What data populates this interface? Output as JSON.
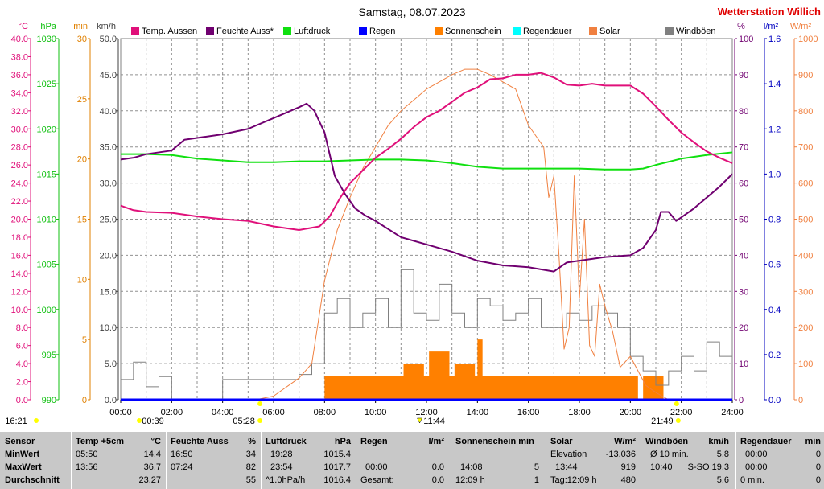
{
  "title": "Samstag, 08.07.2023",
  "station": "Wetterstation Willich",
  "colors": {
    "temp": "#e0107a",
    "hum": "#700070",
    "press": "#10e010",
    "rain": "#0000ff",
    "sun": "#ff8000",
    "raindur": "#00ffff",
    "solar": "#f08040",
    "gust": "#808080",
    "title_red": "#e00000",
    "grid": "#808080",
    "marker": "#ffff00"
  },
  "legend": [
    {
      "label": "Temp. Aussen",
      "color": "#e0107a"
    },
    {
      "label": "Feuchte Auss*",
      "color": "#700070"
    },
    {
      "label": "Luftdruck",
      "color": "#10e010"
    },
    {
      "label": "Regen",
      "color": "#0000ff"
    },
    {
      "label": "Sonnenschein",
      "color": "#ff8000"
    },
    {
      "label": "Regendauer",
      "color": "#00ffff"
    },
    {
      "label": "Solar",
      "color": "#f08040"
    },
    {
      "label": "Windböen",
      "color": "#808080"
    }
  ],
  "axes": {
    "temp": {
      "unit": "°C",
      "ticks": [
        "40.0",
        "38.0",
        "36.0",
        "34.0",
        "32.0",
        "30.0",
        "28.0",
        "26.0",
        "24.0",
        "22.0",
        "20.0",
        "18.0",
        "16.0",
        "14.0",
        "12.0",
        "10.0",
        "8.0",
        "6.0",
        "4.0",
        "2.0",
        "0.0"
      ],
      "color": "#e0107a"
    },
    "press": {
      "unit": "hPa",
      "ticks": [
        "1030",
        "1025",
        "1020",
        "1015",
        "1010",
        "1005",
        "1000",
        "995",
        "990"
      ],
      "color": "#10c010"
    },
    "min": {
      "unit": "min",
      "ticks": [
        "30",
        "25",
        "20",
        "15",
        "10",
        "5",
        "0"
      ],
      "color": "#e08000"
    },
    "wind": {
      "unit": "km/h",
      "ticks": [
        "50.0",
        "45.0",
        "40.0",
        "35.0",
        "30.0",
        "25.0",
        "20.0",
        "15.0",
        "10.0",
        "5.0",
        "0.0"
      ],
      "color": "#404040"
    },
    "hum": {
      "unit": "%",
      "ticks": [
        "100",
        "90",
        "80",
        "70",
        "60",
        "50",
        "40",
        "30",
        "20",
        "10",
        "0"
      ],
      "color": "#700070"
    },
    "rainrate": {
      "unit": "l/m²",
      "ticks": [
        "1.6",
        "1.4",
        "1.2",
        "1.0",
        "0.8",
        "0.6",
        "0.4",
        "0.2",
        "0.0"
      ],
      "color": "#0000c0"
    },
    "solar": {
      "unit": "W/m²",
      "ticks": [
        "1000",
        "900",
        "800",
        "700",
        "600",
        "500",
        "400",
        "300",
        "200",
        "100",
        "0"
      ],
      "color": "#f08040"
    },
    "x": {
      "ticks": [
        "00:00",
        "02:00",
        "04:00",
        "06:00",
        "08:00",
        "10:00",
        "12:00",
        "14:00",
        "16:00",
        "18:00",
        "20:00",
        "22:00",
        "24:00"
      ]
    }
  },
  "events": {
    "sunrise": "05:28",
    "sunset": "21:49",
    "noon": "11:44",
    "moonrise": "00:39",
    "moonset": "16:21"
  },
  "chart_data": {
    "type": "line",
    "title": "Samstag, 08.07.2023",
    "x_unit": "hour",
    "xlim": [
      0,
      24
    ],
    "series": [
      {
        "name": "Temp. Aussen",
        "axis": "°C",
        "ylim": [
          0,
          40
        ],
        "x": [
          0,
          0.5,
          1,
          2,
          3,
          4,
          5,
          6,
          7,
          7.8,
          8.2,
          8.6,
          9,
          9.5,
          10,
          10.5,
          11,
          11.5,
          12,
          12.5,
          13,
          13.5,
          14,
          14.5,
          15,
          15.5,
          16,
          16.5,
          17,
          17.5,
          18,
          18.5,
          19,
          19.5,
          20,
          20.5,
          21,
          21.5,
          22,
          22.5,
          23,
          23.5,
          24
        ],
        "y": [
          21.5,
          21.0,
          20.8,
          20.7,
          20.3,
          20.0,
          19.8,
          19.2,
          18.8,
          19.2,
          20.3,
          22.3,
          24.0,
          25.4,
          26.8,
          27.8,
          28.9,
          30.2,
          31.3,
          32.0,
          33.0,
          34.0,
          34.6,
          35.5,
          35.6,
          36.0,
          36.0,
          36.2,
          35.7,
          34.9,
          34.8,
          35.0,
          34.8,
          34.8,
          34.8,
          33.9,
          32.5,
          31.0,
          29.6,
          28.5,
          27.5,
          26.8,
          26.2
        ]
      },
      {
        "name": "Feuchte Auss*",
        "axis": "%",
        "ylim": [
          0,
          100
        ],
        "x": [
          0,
          0.5,
          1,
          2,
          2.5,
          3,
          4,
          5,
          6,
          7,
          7.3,
          7.6,
          8,
          8.4,
          8.8,
          9.2,
          9.6,
          10,
          11,
          12,
          13,
          14,
          15,
          16,
          17,
          17.5,
          18,
          19,
          20,
          20.5,
          21,
          21.2,
          21.5,
          21.8,
          22,
          22.5,
          23,
          23.5,
          24
        ],
        "y": [
          66.5,
          67,
          68,
          69,
          72,
          72.5,
          73.5,
          75,
          78,
          81,
          82,
          80,
          74,
          62,
          57,
          53,
          51,
          49.5,
          45,
          43,
          41,
          38.5,
          37.2,
          36.7,
          35.5,
          38,
          38.5,
          39.5,
          40,
          42,
          47,
          52,
          52,
          49.5,
          50.5,
          53,
          56,
          59,
          62.5
        ]
      },
      {
        "name": "Luftdruck",
        "axis": "hPa",
        "ylim": [
          990,
          1030
        ],
        "x": [
          0,
          1,
          2,
          3,
          4,
          5,
          6,
          7,
          8,
          9,
          10,
          11,
          12,
          13,
          14,
          15,
          16,
          17,
          18,
          19,
          20,
          20.5,
          21,
          22,
          23,
          24
        ],
        "y": [
          1017.2,
          1017.2,
          1017.1,
          1016.7,
          1016.5,
          1016.3,
          1016.3,
          1016.4,
          1016.4,
          1016.5,
          1016.6,
          1016.6,
          1016.5,
          1016.2,
          1015.8,
          1015.6,
          1015.6,
          1015.6,
          1015.6,
          1015.5,
          1015.5,
          1015.6,
          1016.0,
          1016.7,
          1017.1,
          1017.4
        ]
      },
      {
        "name": "Solar",
        "axis": "W/m²",
        "ylim": [
          0,
          1000
        ],
        "x": [
          0,
          5.3,
          6,
          7,
          7.5,
          8,
          8.5,
          9,
          9.5,
          10,
          10.5,
          11,
          11.5,
          12,
          12.5,
          13,
          13.5,
          14,
          14.5,
          15,
          15.5,
          16,
          16.3,
          16.6,
          16.8,
          17,
          17.2,
          17.4,
          17.6,
          17.8,
          18,
          18.2,
          18.4,
          18.6,
          18.8,
          19,
          19.3,
          19.6,
          20,
          20.3,
          20.6,
          21,
          21.5,
          24
        ],
        "y": [
          0,
          0,
          10,
          60,
          100,
          330,
          470,
          560,
          640,
          700,
          760,
          800,
          830,
          860,
          880,
          900,
          915,
          915,
          900,
          880,
          860,
          760,
          730,
          700,
          560,
          620,
          400,
          140,
          200,
          620,
          280,
          500,
          150,
          120,
          320,
          260,
          190,
          90,
          120,
          80,
          40,
          20,
          0,
          0
        ]
      },
      {
        "name": "Sonnenschein",
        "axis": "min",
        "ylim": [
          0,
          30
        ],
        "x": [
          0,
          7.8,
          8,
          10.9,
          11.1,
          11.9,
          12.1,
          12.9,
          13.1,
          13.9,
          14,
          14.2,
          19.9,
          20.3,
          20.5,
          20.9,
          21.3,
          24
        ],
        "y": [
          0,
          0,
          2,
          2,
          3,
          2,
          4,
          2,
          3,
          2,
          5,
          2,
          2,
          0,
          2,
          2,
          0,
          0
        ]
      },
      {
        "name": "Windböen",
        "axis": "km/h",
        "ylim": [
          0,
          50
        ],
        "x": [
          0,
          0.5,
          1,
          1.5,
          2,
          3,
          4,
          5,
          6,
          7,
          7.5,
          8,
          8.5,
          9,
          9.5,
          10,
          10.5,
          11,
          11.5,
          12,
          12.5,
          13,
          13.5,
          14,
          14.5,
          15,
          15.5,
          16,
          16.5,
          17,
          17.5,
          18,
          18.5,
          19,
          19.5,
          20,
          20.5,
          21,
          21.5,
          22,
          22.5,
          23,
          23.5,
          24
        ],
        "y": [
          2.8,
          5.2,
          1.8,
          3.2,
          0,
          0,
          2.8,
          2.8,
          2.8,
          3.5,
          5,
          12,
          14,
          10,
          12,
          14,
          10,
          18,
          12,
          11,
          16,
          12,
          10,
          14,
          13,
          11,
          12,
          14,
          10,
          10,
          12,
          11,
          13,
          12,
          10,
          6,
          4,
          2,
          4,
          6,
          4,
          8,
          6,
          4
        ]
      },
      {
        "name": "Regen",
        "axis": "l/m²",
        "ylim": [
          0,
          1.6
        ],
        "x": [
          0,
          24
        ],
        "y": [
          0,
          0
        ]
      }
    ]
  },
  "stats": {
    "headers": {
      "sensor": "Sensor",
      "temp": "Temp +5cm",
      "temp_unit": "°C",
      "hum": "Feuchte Auss",
      "hum_unit": "%",
      "press": "Luftdruck",
      "press_unit": "hPa",
      "rain": "Regen",
      "rain_unit": "l/m²",
      "sun": "Sonnenschein min",
      "solar": "Solar",
      "solar_unit": "W/m²",
      "wind": "Windböen",
      "wind_unit": "km/h",
      "raindur": "Regendauer",
      "raindur_unit": "min"
    },
    "rows": [
      "MinWert",
      "MaxWert",
      "Durchschnitt"
    ],
    "temp": [
      [
        "05:50",
        "14.4"
      ],
      [
        "13:56",
        "36.7"
      ],
      [
        "",
        "23.27"
      ]
    ],
    "hum": [
      [
        "16:50",
        "34"
      ],
      [
        "07:24",
        "82"
      ],
      [
        "",
        "55"
      ]
    ],
    "press": [
      [
        "19:28",
        "1015.4"
      ],
      [
        "23:54",
        "1017.7"
      ],
      [
        "^1.0hPa/h",
        "1016.4"
      ]
    ],
    "rain": [
      [
        "",
        ""
      ],
      [
        "00:00",
        "0.0"
      ],
      [
        "Gesamt:",
        "0.0"
      ]
    ],
    "sun": [
      [
        "",
        ""
      ],
      [
        "14:08",
        "5"
      ],
      [
        "12:09 h",
        "1"
      ]
    ],
    "solar": [
      [
        "Elevation",
        "-13.036"
      ],
      [
        "13:44",
        "919"
      ],
      [
        "Tag:12:09 h",
        "480"
      ]
    ],
    "wind": [
      [
        "Ø 10 min.",
        "5.8"
      ],
      [
        "10:40",
        "S-SO 19.3"
      ],
      [
        "",
        "5.6"
      ]
    ],
    "raindur": [
      [
        "00:00",
        "0"
      ],
      [
        "00:00",
        "0"
      ],
      [
        "0 min.",
        "0"
      ]
    ]
  }
}
